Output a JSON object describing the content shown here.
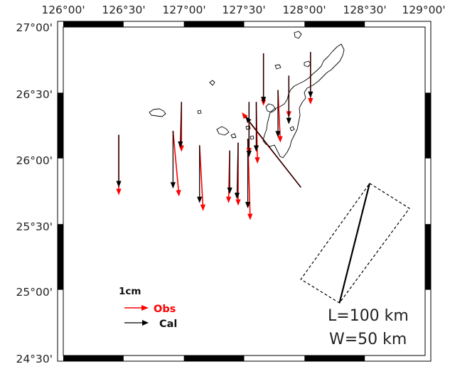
{
  "axes": {
    "top_labels": [
      "126°00'",
      "126°30'",
      "127°00'",
      "127°30'",
      "128°00'",
      "128°30'",
      "129°00'"
    ],
    "left_labels": [
      "27°00'",
      "26°30'",
      "26°00'",
      "25°30'",
      "25°00'",
      "24°30'"
    ]
  },
  "legend": {
    "scale_label": "1cm",
    "obs_label": "Obs",
    "cal_label": "Cal",
    "obs_color": "#ff0000",
    "cal_color": "#000000"
  },
  "fault_params": {
    "length_text": "L=100 km",
    "width_text": "W=50 km"
  },
  "map_extent": {
    "lon": [
      126.0,
      129.0
    ],
    "lat": [
      24.5,
      27.0
    ]
  },
  "fault_plane": {
    "corners_lonlat": [
      [
        128.54,
        25.81
      ],
      [
        128.87,
        25.62
      ],
      [
        128.29,
        24.9
      ],
      [
        127.97,
        25.08
      ]
    ],
    "top_edge_solid": [
      [
        128.54,
        25.81
      ],
      [
        128.29,
        24.9
      ]
    ]
  },
  "displacement_vectors": [
    {
      "site": [
        126.46,
        26.18
      ],
      "obs": [
        0.0,
        -0.46
      ],
      "cal": [
        0.0,
        -0.4
      ]
    },
    {
      "site": [
        126.91,
        26.21
      ],
      "obs": [
        0.05,
        -0.5
      ],
      "cal": [
        0.0,
        -0.44
      ]
    },
    {
      "site": [
        126.98,
        26.43
      ],
      "obs": [
        0.0,
        -0.38
      ],
      "cal": [
        -0.01,
        -0.35
      ]
    },
    {
      "site": [
        127.13,
        26.1
      ],
      "obs": [
        0.03,
        -0.5
      ],
      "cal": [
        0.0,
        -0.44
      ]
    },
    {
      "site": [
        127.38,
        26.06
      ],
      "obs": [
        -0.01,
        -0.4
      ],
      "cal": [
        0.0,
        -0.33
      ]
    },
    {
      "site": [
        127.45,
        26.12
      ],
      "obs": [
        0.0,
        -0.48
      ],
      "cal": [
        -0.01,
        -0.43
      ]
    },
    {
      "site": [
        127.53,
        26.15
      ],
      "obs": [
        0.02,
        -0.62
      ],
      "cal": [
        0.0,
        -0.53
      ]
    },
    {
      "site": [
        127.54,
        26.43
      ],
      "obs": [
        0.0,
        -0.4
      ],
      "cal": [
        0.0,
        -0.42
      ]
    },
    {
      "site": [
        127.6,
        26.43
      ],
      "obs": [
        0.01,
        -0.47
      ],
      "cal": [
        0.0,
        -0.38
      ]
    },
    {
      "site": [
        127.66,
        26.8
      ],
      "obs": [
        0.0,
        -0.4
      ],
      "cal": [
        0.0,
        -0.38
      ]
    },
    {
      "site": [
        127.78,
        26.52
      ],
      "obs": [
        0.02,
        -0.4
      ],
      "cal": [
        0.0,
        -0.36
      ]
    },
    {
      "site": [
        127.87,
        26.63
      ],
      "obs": [
        0.0,
        -0.32
      ],
      "cal": [
        0.0,
        -0.37
      ]
    },
    {
      "site": [
        128.05,
        26.81
      ],
      "obs": [
        0.0,
        -0.4
      ],
      "cal": [
        0.0,
        -0.35
      ]
    },
    {
      "site": [
        127.97,
        25.78
      ],
      "obs": [
        -0.49,
        0.57
      ],
      "cal": [
        -0.46,
        0.54
      ]
    }
  ]
}
